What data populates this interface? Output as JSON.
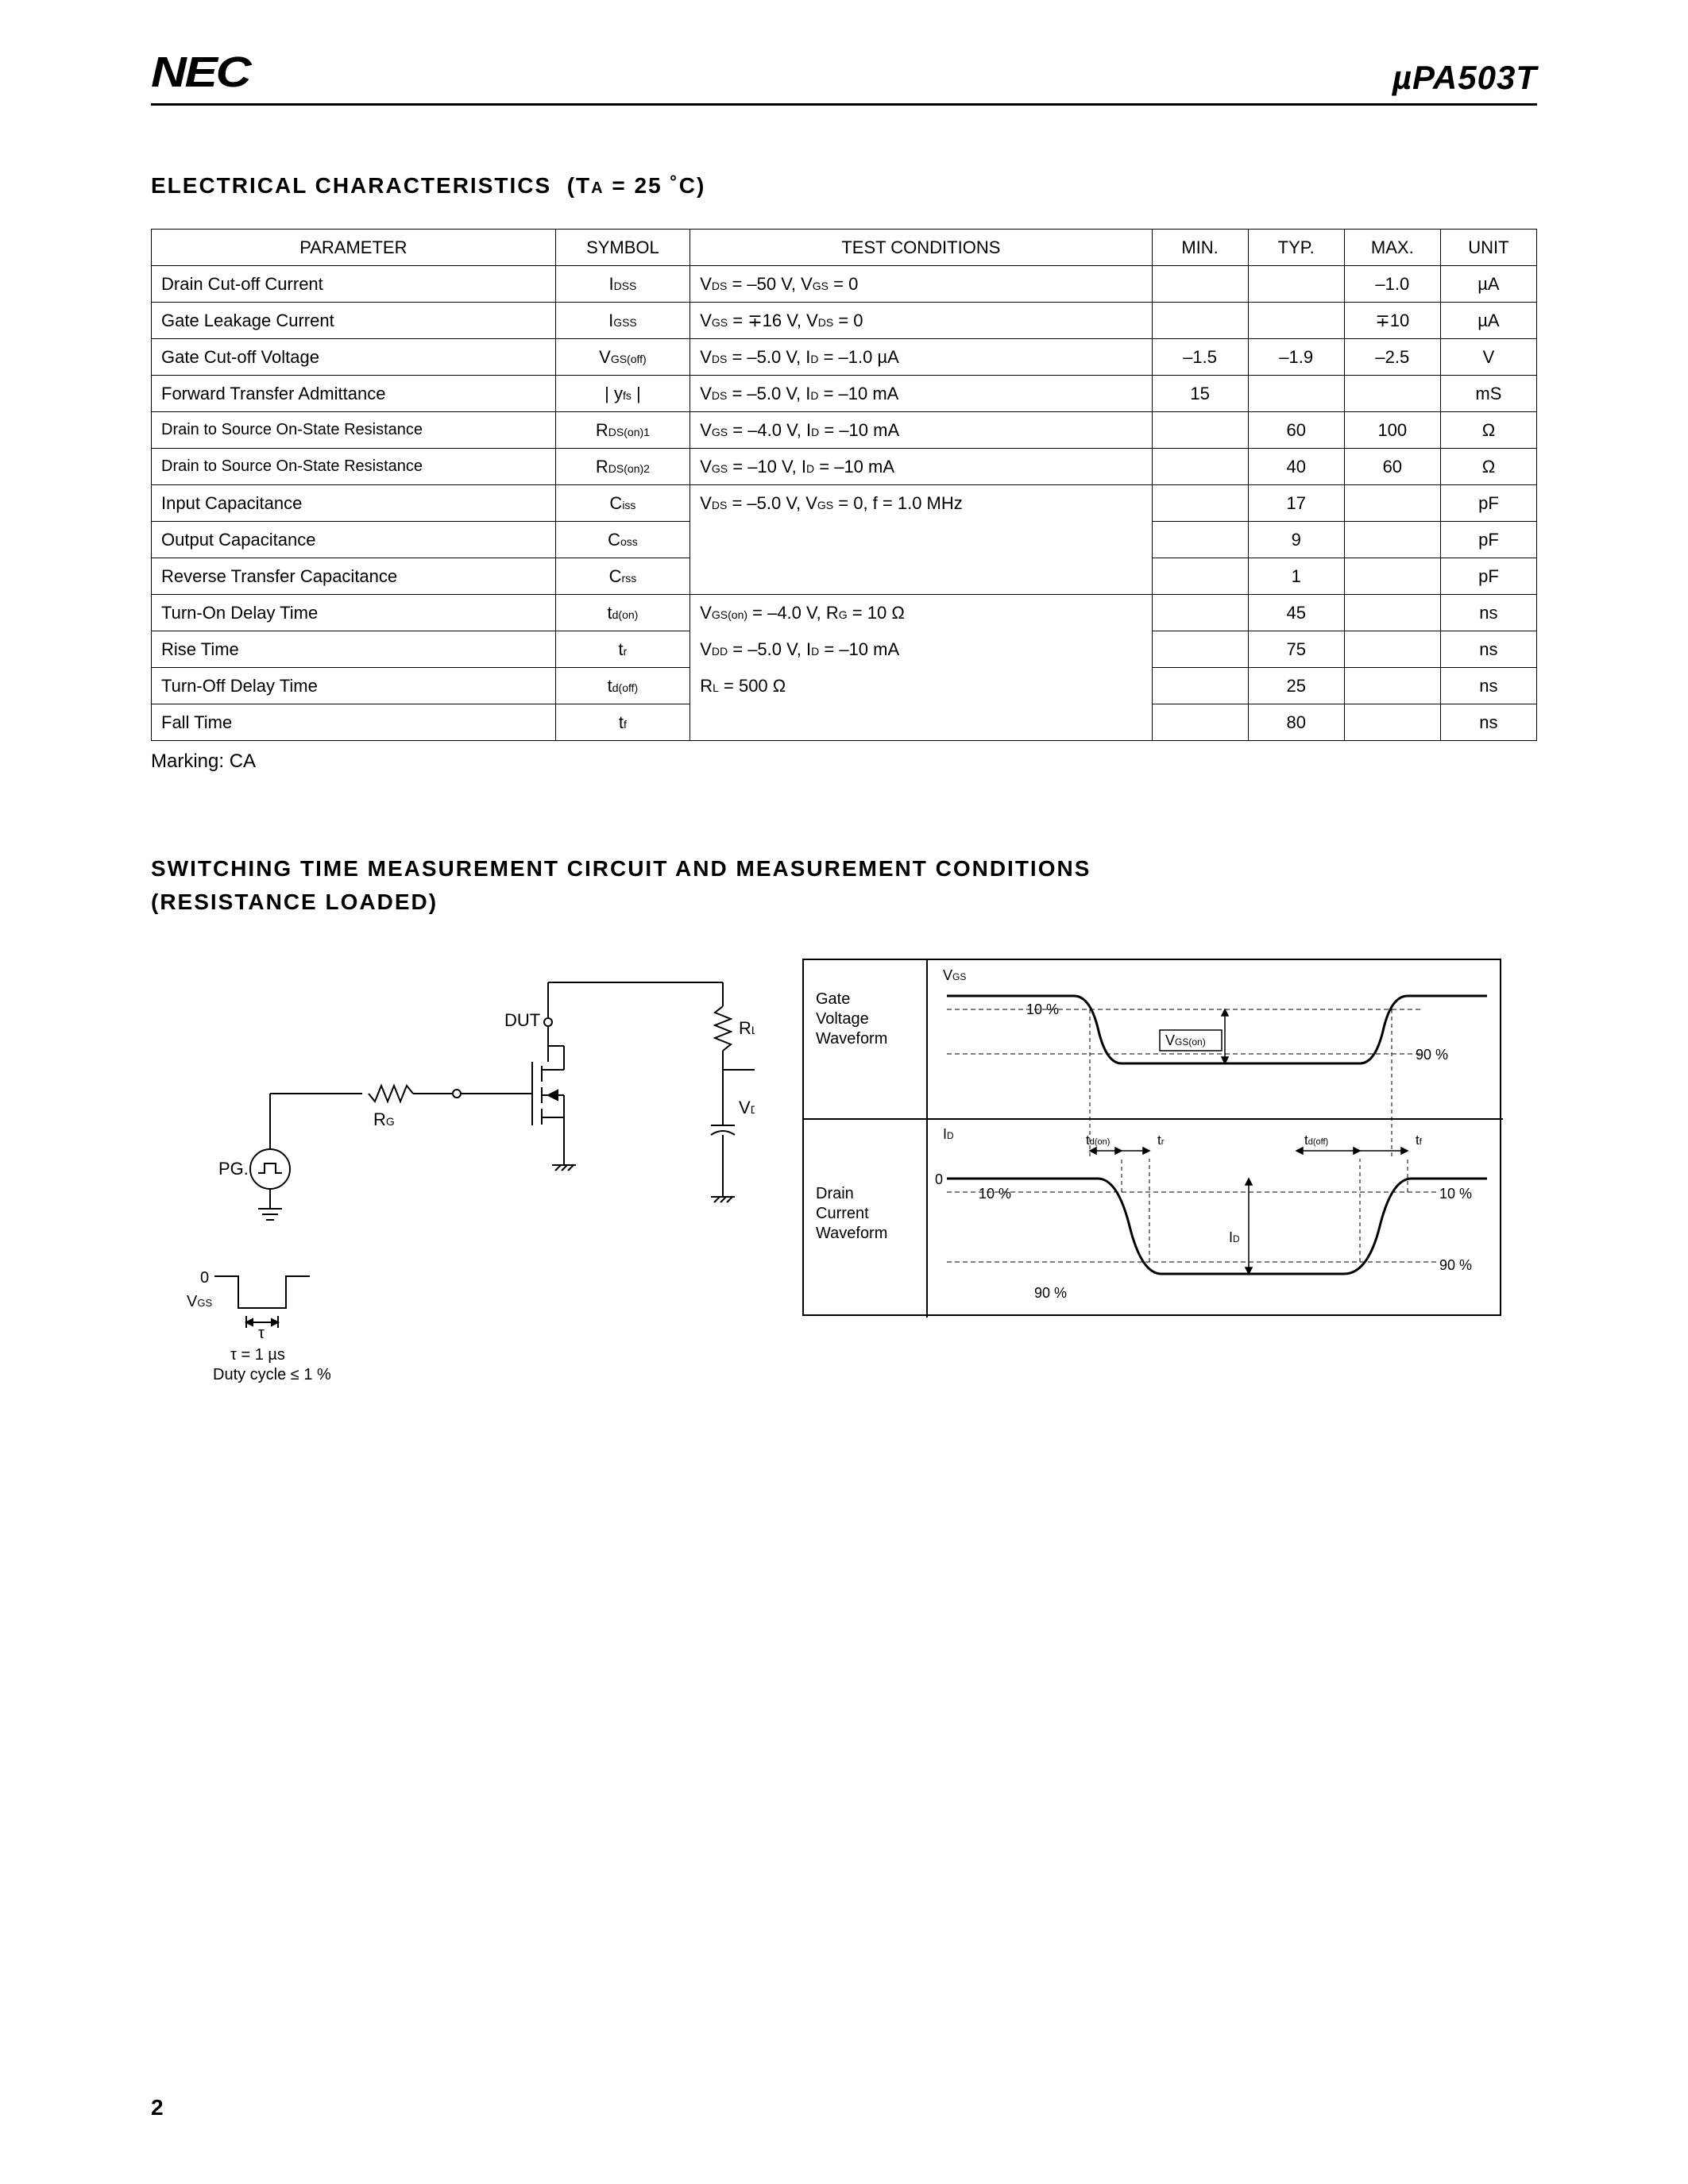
{
  "header": {
    "logo": "NEC",
    "part_prefix": "µ",
    "part_number": "PA503T"
  },
  "section1": {
    "title_main": "ELECTRICAL  CHARACTERISTICS",
    "title_cond": "(T",
    "title_sub": "A",
    "title_eq": " = 25 ˚C)"
  },
  "table": {
    "headers": {
      "parameter": "PARAMETER",
      "symbol": "SYMBOL",
      "conditions": "TEST CONDITIONS",
      "min": "MIN.",
      "typ": "TYP.",
      "max": "MAX.",
      "unit": "UNIT"
    },
    "rows": [
      {
        "param": "Drain Cut-off Current",
        "sym": "I",
        "sub": "DSS",
        "cond": "V",
        "cond_sub": "DS",
        "cond_rest": " = –50 V, V",
        "cond_sub2": "GS",
        "cond_rest2": " = 0",
        "min": "",
        "typ": "",
        "max": "–1.0",
        "unit": "µA"
      },
      {
        "param": "Gate Leakage Current",
        "sym": "I",
        "sub": "GSS",
        "cond": "V",
        "cond_sub": "GS",
        "cond_rest": " = ∓16 V, V",
        "cond_sub2": "DS",
        "cond_rest2": " = 0",
        "min": "",
        "typ": "",
        "max": "∓10",
        "unit": "µA"
      },
      {
        "param": "Gate Cut-off Voltage",
        "sym": "V",
        "sub": "GS(off)",
        "cond": "V",
        "cond_sub": "DS",
        "cond_rest": " = –5.0 V, I",
        "cond_sub2": "D",
        "cond_rest2": " = –1.0 µA",
        "min": "–1.5",
        "typ": "–1.9",
        "max": "–2.5",
        "unit": "V"
      },
      {
        "param": "Forward Transfer Admittance",
        "sym": "| y",
        "sub": "fs",
        "sym_suffix": " |",
        "cond": "V",
        "cond_sub": "DS",
        "cond_rest": " = –5.0 V, I",
        "cond_sub2": "D",
        "cond_rest2": " = –10 mA",
        "min": "15",
        "typ": "",
        "max": "",
        "unit": "mS"
      },
      {
        "param": "Drain to Source On-State Resistance",
        "sym": "R",
        "sub": "DS(on)1",
        "cond": "V",
        "cond_sub": "GS",
        "cond_rest": " = –4.0 V, I",
        "cond_sub2": "D",
        "cond_rest2": " = –10 mA",
        "min": "",
        "typ": "60",
        "max": "100",
        "unit": "Ω"
      },
      {
        "param": "Drain to Source On-State Resistance",
        "sym": "R",
        "sub": "DS(on)2",
        "cond": "V",
        "cond_sub": "GS",
        "cond_rest": " = –10 V, I",
        "cond_sub2": "D",
        "cond_rest2": " = –10 mA",
        "min": "",
        "typ": "40",
        "max": "60",
        "unit": "Ω"
      },
      {
        "param": "Input Capacitance",
        "sym": "C",
        "sub": "iss",
        "cond": "V",
        "cond_sub": "DS",
        "cond_rest": " = –5.0 V, V",
        "cond_sub2": "GS",
        "cond_rest2": " = 0, f = 1.0 MHz",
        "min": "",
        "typ": "17",
        "max": "",
        "unit": "pF",
        "cond_open_below": true
      },
      {
        "param": "Output Capacitance",
        "sym": "C",
        "sub": "oss",
        "cond": "",
        "min": "",
        "typ": "9",
        "max": "",
        "unit": "pF",
        "cond_open_above": true,
        "cond_open_below": true
      },
      {
        "param": "Reverse Transfer Capacitance",
        "sym": "C",
        "sub": "rss",
        "cond": "",
        "min": "",
        "typ": "1",
        "max": "",
        "unit": "pF",
        "cond_open_above": true
      },
      {
        "param": "Turn-On Delay  Time",
        "sym": "t",
        "sub": "d(on)",
        "cond": "V",
        "cond_sub": "GS(on)",
        "cond_rest": " = –4.0 V, R",
        "cond_sub2": "G",
        "cond_rest2": " = 10 Ω",
        "min": "",
        "typ": "45",
        "max": "",
        "unit": "ns",
        "cond_open_below": true
      },
      {
        "param": "Rise Time",
        "sym": "t",
        "sub": "r",
        "cond": "V",
        "cond_sub": "DD",
        "cond_rest": " = –5.0 V, I",
        "cond_sub2": "D",
        "cond_rest2": " = –10 mA",
        "min": "",
        "typ": "75",
        "max": "",
        "unit": "ns",
        "cond_open_above": true,
        "cond_open_below": true
      },
      {
        "param": "Turn-Off Delay Time",
        "sym": "t",
        "sub": "d(off)",
        "cond": "R",
        "cond_sub": "L",
        "cond_rest": " = 500 Ω",
        "min": "",
        "typ": "25",
        "max": "",
        "unit": "ns",
        "cond_open_above": true,
        "cond_open_below": true
      },
      {
        "param": "Fall Time",
        "sym": "t",
        "sub": "f",
        "cond": "",
        "min": "",
        "typ": "80",
        "max": "",
        "unit": "ns",
        "cond_open_above": true
      }
    ]
  },
  "marking": "Marking:  CA",
  "section2": {
    "line1": "SWITCHING  TIME  MEASUREMENT  CIRCUIT  AND  MEASUREMENT  CONDITIONS",
    "line2": "(RESISTANCE  LOADED)"
  },
  "circuit": {
    "dut": "DUT",
    "rl": "R",
    "rl_sub": "L",
    "vdd": "V",
    "vdd_sub": "DD",
    "rg": "R",
    "rg_sub": "G",
    "pg": "PG.",
    "zero": "0",
    "vgs": "V",
    "vgs_sub": "GS",
    "tau": "τ",
    "tau_eq": "τ = 1 µs",
    "duty": "Duty cycle ≤ 1 %"
  },
  "waveform": {
    "vgs": "V",
    "vgs_sub": "GS",
    "gate_label": "Gate\nVoltage\nWaveform",
    "drain_label": "Drain\nCurrent\nWaveform",
    "id": "I",
    "id_sub": "D",
    "pct10": "10 %",
    "pct90": "90 %",
    "vgson": "V",
    "vgson_sub": "GS(on)",
    "tdon": "t",
    "tdon_sub": "d(on)",
    "tr": "t",
    "tr_sub": "r",
    "tdoff": "t",
    "tdoff_sub": "d(off)",
    "tf": "t",
    "tf_sub": "f",
    "zero": "0"
  },
  "page_number": "2"
}
